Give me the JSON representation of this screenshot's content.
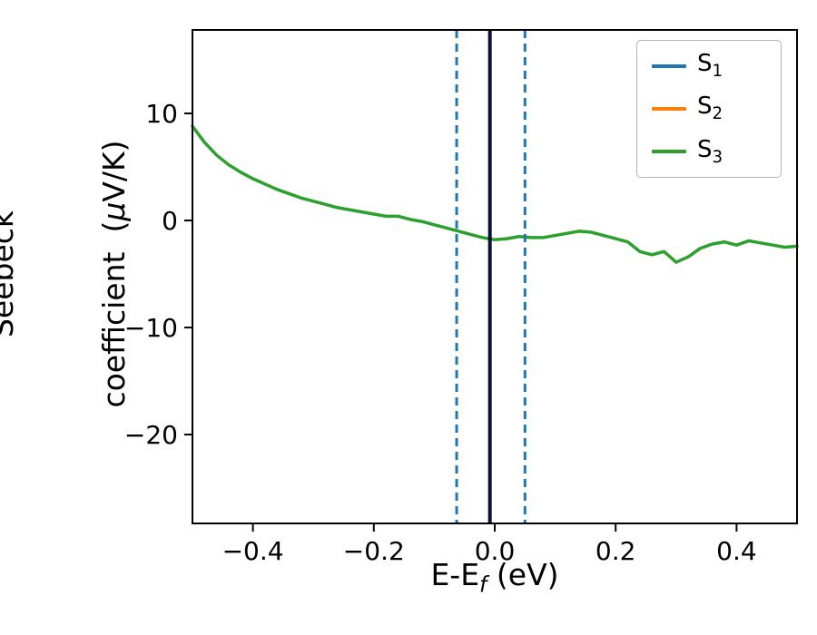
{
  "chart_data": {
    "type": "line",
    "title": "",
    "xlabel": {
      "prefix": "E-E",
      "sub": "f",
      "suffix": " (eV)"
    },
    "ylabel": {
      "line1": "Seebeck",
      "line2_pre": "coefficient  (",
      "mu": "μ",
      "line2_post": "V/K)"
    },
    "xlim": [
      -0.5,
      0.5
    ],
    "ylim": [
      -28.3,
      17.8
    ],
    "grid": false,
    "legend_position": "upper right",
    "xticks": [
      {
        "v": -0.4,
        "label": "−0.4"
      },
      {
        "v": -0.2,
        "label": "−0.2"
      },
      {
        "v": 0.0,
        "label": "0.0"
      },
      {
        "v": 0.2,
        "label": "0.2"
      },
      {
        "v": 0.4,
        "label": "0.4"
      }
    ],
    "yticks": [
      {
        "v": 10,
        "label": "10"
      },
      {
        "v": 0,
        "label": "0"
      },
      {
        "v": -10,
        "label": "−10"
      },
      {
        "v": -20,
        "label": "−20"
      }
    ],
    "series": [
      {
        "name": "S3",
        "color": "#2ca02c",
        "width": 3.5,
        "x": [
          -0.5,
          -0.48,
          -0.46,
          -0.44,
          -0.42,
          -0.4,
          -0.38,
          -0.36,
          -0.34,
          -0.32,
          -0.3,
          -0.28,
          -0.26,
          -0.24,
          -0.22,
          -0.2,
          -0.18,
          -0.16,
          -0.14,
          -0.12,
          -0.1,
          -0.08,
          -0.06,
          -0.04,
          -0.02,
          0.0,
          0.02,
          0.04,
          0.06,
          0.08,
          0.1,
          0.12,
          0.14,
          0.16,
          0.18,
          0.2,
          0.22,
          0.24,
          0.26,
          0.28,
          0.3,
          0.32,
          0.34,
          0.36,
          0.38,
          0.4,
          0.42,
          0.44,
          0.46,
          0.48,
          0.5
        ],
        "y": [
          8.8,
          7.3,
          6.1,
          5.2,
          4.5,
          3.9,
          3.4,
          2.9,
          2.5,
          2.1,
          1.8,
          1.5,
          1.2,
          1.0,
          0.8,
          0.6,
          0.4,
          0.4,
          0.1,
          -0.1,
          -0.4,
          -0.7,
          -1.0,
          -1.3,
          -1.6,
          -1.8,
          -1.7,
          -1.5,
          -1.6,
          -1.6,
          -1.4,
          -1.2,
          -1.0,
          -1.1,
          -1.4,
          -1.7,
          -2.0,
          -2.9,
          -3.2,
          -2.9,
          -3.9,
          -3.4,
          -2.6,
          -2.2,
          -2.0,
          -2.3,
          -1.9,
          -2.1,
          -2.3,
          -2.5,
          -2.4
        ]
      }
    ],
    "vlines": [
      {
        "x": -0.063,
        "color": "#1f77b4",
        "dash": true,
        "width": 3
      },
      {
        "x": 0.05,
        "color": "#1f77b4",
        "dash": true,
        "width": 3
      },
      {
        "x": -0.008,
        "color": "#0d1030",
        "dash": false,
        "width": 4
      }
    ],
    "legend": {
      "items": [
        {
          "label": "S",
          "sub": "1",
          "color": "#1f77b4"
        },
        {
          "label": "S",
          "sub": "2",
          "color": "#ff7f0e"
        },
        {
          "label": "S",
          "sub": "3",
          "color": "#2ca02c"
        }
      ]
    }
  }
}
